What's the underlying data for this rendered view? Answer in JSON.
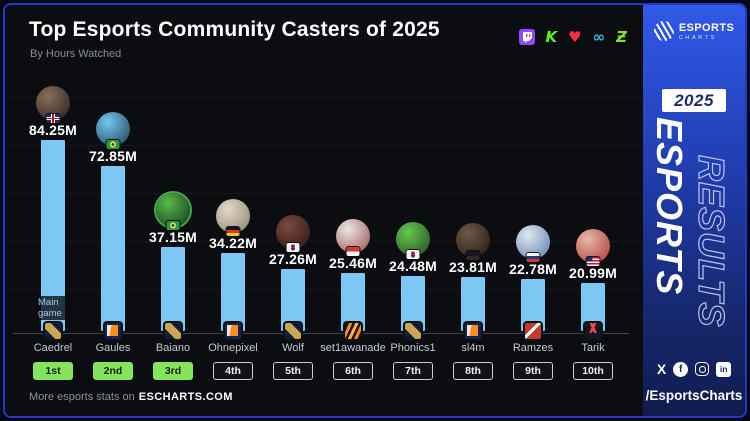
{
  "header": {
    "title": "Top Esports Community Casters of 2025",
    "subtitle": "By Hours Watched",
    "platforms": [
      {
        "name": "twitch",
        "color": "#9146ff",
        "glyph": ""
      },
      {
        "name": "kick",
        "color": "#53fc18",
        "glyph": "K"
      },
      {
        "name": "heart",
        "color": "#ff2a44",
        "glyph": "♥"
      },
      {
        "name": "infinity",
        "color": "#2cc3ea",
        "glyph": "∞"
      },
      {
        "name": "z-stroke",
        "color": "#86e02d",
        "glyph": "Ƶ"
      }
    ]
  },
  "chart_data": {
    "type": "bar",
    "title": "Top Esports Community Casters of 2025",
    "subtitle": "By Hours Watched",
    "unit": "hours watched (millions)",
    "categories": [
      "Caedrel",
      "Gaules",
      "Baiano",
      "Ohnepixel",
      "Wolf",
      "set1awanade",
      "Phonics1",
      "sl4m",
      "Ramzes",
      "Tarik"
    ],
    "values": [
      84.25,
      72.85,
      37.15,
      34.22,
      27.26,
      25.46,
      24.48,
      23.81,
      22.78,
      20.99
    ],
    "value_labels": [
      "84.25M",
      "72.85M",
      "37.15M",
      "34.22M",
      "27.26M",
      "25.46M",
      "24.48M",
      "23.81M",
      "22.78M",
      "20.99M"
    ],
    "ranks": [
      "1st",
      "2nd",
      "3rd",
      "4th",
      "5th",
      "6th",
      "7th",
      "8th",
      "9th",
      "10th"
    ],
    "xlabel": "",
    "ylabel": "",
    "ylim": [
      0,
      90
    ],
    "grid": true,
    "legend": "none",
    "bar_color": "#7dc7f4"
  },
  "casters": [
    {
      "name": "Caedrel",
      "value": 84.25,
      "value_label": "84.25M",
      "rank": "1st",
      "rank_style": "green",
      "flag": "gb",
      "game": "lol",
      "avatar_colors": [
        "#8a6f5a",
        "#241d1a"
      ]
    },
    {
      "name": "Gaules",
      "value": 72.85,
      "value_label": "72.85M",
      "rank": "2nd",
      "rank_style": "green",
      "flag": "br",
      "game": "cs2",
      "avatar_colors": [
        "#74c7ef",
        "#1d3a55"
      ]
    },
    {
      "name": "Baiano",
      "value": 37.15,
      "value_label": "37.15M",
      "rank": "3rd",
      "rank_style": "green",
      "flag": "br",
      "game": "lol",
      "avatar_colors": [
        "#57b94a",
        "#143320"
      ],
      "ring": "#3fae47"
    },
    {
      "name": "Ohnepixel",
      "value": 34.22,
      "value_label": "34.22M",
      "rank": "4th",
      "rank_style": "outline",
      "flag": "de",
      "game": "cs2",
      "avatar_colors": [
        "#e3d9c8",
        "#8c7f6d"
      ]
    },
    {
      "name": "Wolf",
      "value": 27.26,
      "value_label": "27.26M",
      "rank": "5th",
      "rank_style": "outline",
      "flag": "kr",
      "game": "lol",
      "avatar_colors": [
        "#7a4a3e",
        "#2a1515"
      ]
    },
    {
      "name": "set1awanade",
      "value": 25.46,
      "value_label": "25.46M",
      "rank": "6th",
      "rank_style": "outline",
      "flag": "id",
      "game": "mlbb",
      "avatar_colors": [
        "#e8e6e2",
        "#9c5050"
      ]
    },
    {
      "name": "Phonics1",
      "value": 24.48,
      "value_label": "24.48M",
      "rank": "7th",
      "rank_style": "outline",
      "flag": "kr",
      "game": "lol",
      "avatar_colors": [
        "#67c653",
        "#1f4a1a"
      ]
    },
    {
      "name": "sl4m",
      "value": 23.81,
      "value_label": "23.81M",
      "rank": "8th",
      "rank_style": "outline",
      "flag": "dark",
      "game": "cs2",
      "avatar_colors": [
        "#6e5a48",
        "#20180f"
      ]
    },
    {
      "name": "Ramzes",
      "value": 22.78,
      "value_label": "22.78M",
      "rank": "9th",
      "rank_style": "outline",
      "flag": "ru",
      "game": "dota2",
      "avatar_colors": [
        "#dfe7ee",
        "#5a7aa8"
      ]
    },
    {
      "name": "Tarik",
      "value": 20.99,
      "value_label": "20.99M",
      "rank": "10th",
      "rank_style": "outline",
      "flag": "us",
      "game": "valorant",
      "avatar_colors": [
        "#e8b9a8",
        "#a8352e"
      ]
    }
  ],
  "annotations": {
    "main_game_label": "Main game"
  },
  "footer": {
    "prefix": "More esports stats on",
    "site": "ESCHARTS.COM"
  },
  "side_panel": {
    "logo_title": "ESPORTS",
    "logo_subtitle": "CHARTS",
    "year": "2025",
    "vertical_solid": "ESPORTS",
    "vertical_outline": "RESULTS",
    "handle": "/EsportsCharts",
    "social": [
      {
        "name": "x",
        "glyph": "X",
        "kind": "plain"
      },
      {
        "name": "facebook",
        "glyph": "f",
        "kind": "circle"
      },
      {
        "name": "instagram",
        "glyph": "",
        "kind": "outline"
      },
      {
        "name": "linkedin",
        "glyph": "in",
        "kind": "square"
      }
    ]
  }
}
